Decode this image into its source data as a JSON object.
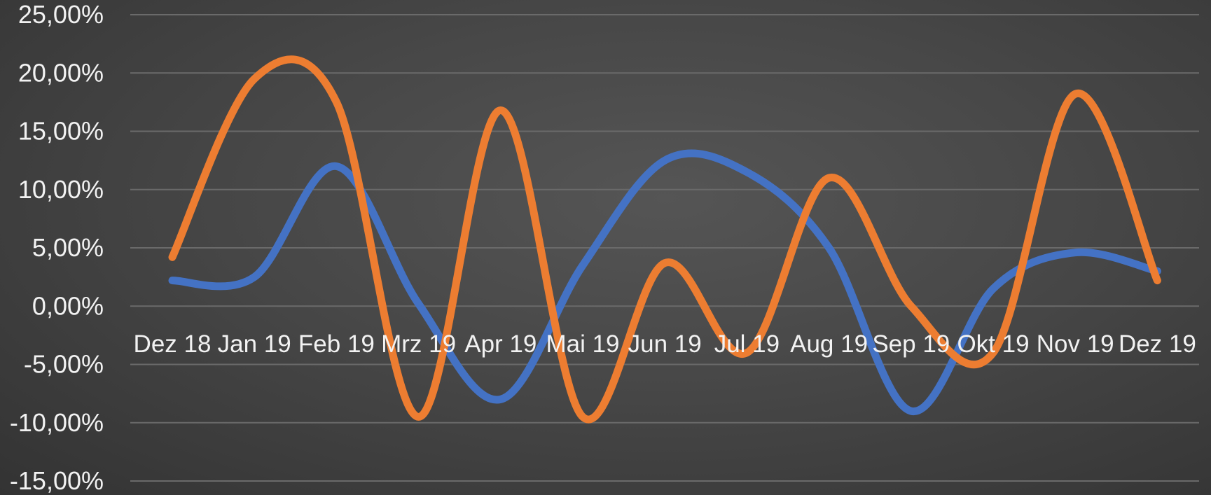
{
  "chart_data": {
    "type": "line",
    "smooth": true,
    "categories": [
      "Dez 18",
      "Jan 19",
      "Feb 19",
      "Mrz 19",
      "Apr 19",
      "Mai 19",
      "Jun 19",
      "Jul 19",
      "Aug 19",
      "Sep 19",
      "Okt 19",
      "Nov 19",
      "Dez 19"
    ],
    "series": [
      {
        "color": "#4472c4",
        "values": [
          2.2,
          2.5,
          12.0,
          0.2,
          -8.0,
          3.5,
          12.5,
          11.5,
          5.0,
          -9.0,
          1.5,
          4.6,
          3.0
        ]
      },
      {
        "color": "#ed7d31",
        "values": [
          4.2,
          19.5,
          17.5,
          -9.5,
          16.8,
          -9.5,
          3.7,
          -4.0,
          11.0,
          0.0,
          -4.0,
          18.2,
          2.2
        ]
      }
    ],
    "y_ticks": [
      "25,00%",
      "20,00%",
      "15,00%",
      "10,00%",
      "5,00%",
      "0,00%",
      "-5,00%",
      "-10,00%",
      "-15,00%"
    ],
    "ylim": [
      -15,
      25
    ],
    "grid": true,
    "legend": "none",
    "title": "",
    "xlabel": "",
    "ylabel": ""
  }
}
